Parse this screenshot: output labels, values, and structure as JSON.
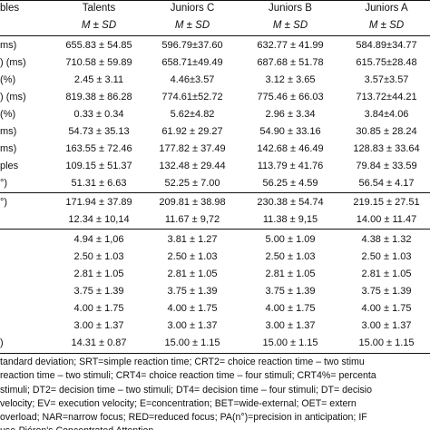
{
  "columns": [
    "bles",
    "Talents",
    "Juniors C",
    "Juniors B",
    "Juniors A"
  ],
  "subheader": [
    "",
    "M ± SD",
    "M ± SD",
    "M ± SD",
    "M ± SD"
  ],
  "rows": [
    [
      "ms)",
      "655.83 ± 54.85",
      "596.79±37.60",
      "632.77 ± 41.99",
      "584.89±34.77"
    ],
    [
      ") (ms)",
      "710.58 ± 59.89",
      "658.71±49.49",
      "687.68 ± 51.78",
      "615.75±28.48"
    ],
    [
      " (%)",
      "2.45 ± 3.11",
      "4.46±3.57",
      "3.12 ± 3.65",
      "3.57±3.57"
    ],
    [
      ") (ms)",
      "819.38 ± 86.28",
      "774.61±52.72",
      "775.46 ± 66.03",
      "713.72±44.21"
    ],
    [
      " (%)",
      "0.33 ± 0.34",
      "5.62±4.82",
      "2.96 ± 3.34",
      "3.84±4.06"
    ],
    [
      "ms)",
      "54.73 ± 35.13",
      "61.92 ± 29.27",
      "54.90 ± 33.16",
      "30.85 ± 28.24"
    ],
    [
      "ms)",
      "163.55 ± 72.46",
      "177.82 ± 37.49",
      "142.68 ± 46.49",
      "128.83 ± 33.64"
    ],
    [
      "ples",
      "109.15 ± 51.37",
      "132.48 ± 29.44",
      "113.79 ± 41.76",
      "79.84 ± 33.59"
    ],
    [
      "°)",
      "51.31 ± 6.63",
      "52.25 ± 7.00",
      "56.25 ± 4.59",
      "56.54 ± 4.17"
    ],
    [
      "°)",
      "171.94 ± 37.89",
      "209.81 ± 38.98",
      "230.38 ± 54.74",
      "219.15 ± 27.51"
    ],
    [
      "",
      "12.34 ± 10,14",
      "11.67 ± 9,72",
      "11.38 ± 9,15",
      "14.00 ± 11.47"
    ],
    [
      "",
      "4.94 ± 1,06",
      "3.81 ± 1.27",
      "5.00 ± 1.09",
      "4.38 ± 1.32"
    ],
    [
      "",
      "2.50 ± 1.03",
      "2.50 ± 1.03",
      "2.50 ± 1.03",
      "2.50 ± 1.03"
    ],
    [
      "",
      "2.81 ± 1.05",
      "2.81 ± 1.05",
      "2.81 ± 1.05",
      "2.81 ± 1.05"
    ],
    [
      "",
      "3.75 ± 1.39",
      "3.75 ± 1.39",
      "3.75 ± 1.39",
      "3.75 ± 1.39"
    ],
    [
      "",
      "4.00 ± 1.75",
      "4.00 ± 1.75",
      "4.00 ± 1.75",
      "4.00 ± 1.75"
    ],
    [
      "",
      "3.00 ± 1.37",
      "3.00 ± 1.37",
      "3.00 ± 1.37",
      "3.00 ± 1.37"
    ],
    [
      ")",
      "14.31 ± 0.87",
      "15.00 ± 1.15",
      "15.00 ± 1.15",
      "15.00 ± 1.15"
    ]
  ],
  "notes": [
    "tandard deviation; SRT=simple reaction time; CRT2= choice reaction time – two stimu",
    "reaction time – two stimuli; CRT4= choice reaction time – four stimuli; CRT4%= percenta",
    "stimuli; DT2= decision time – two stimuli; DT4= decision time – four stimuli; DT= decisio",
    "velocity; EV= execution velocity; E=concentration; BET=wide-external; OET= extern",
    "overload; NAR=narrow focus; RED=reduced focus; PA(n°)=precision in anticipation; IF",
    "use-Piéron's Concentrated Attention."
  ]
}
